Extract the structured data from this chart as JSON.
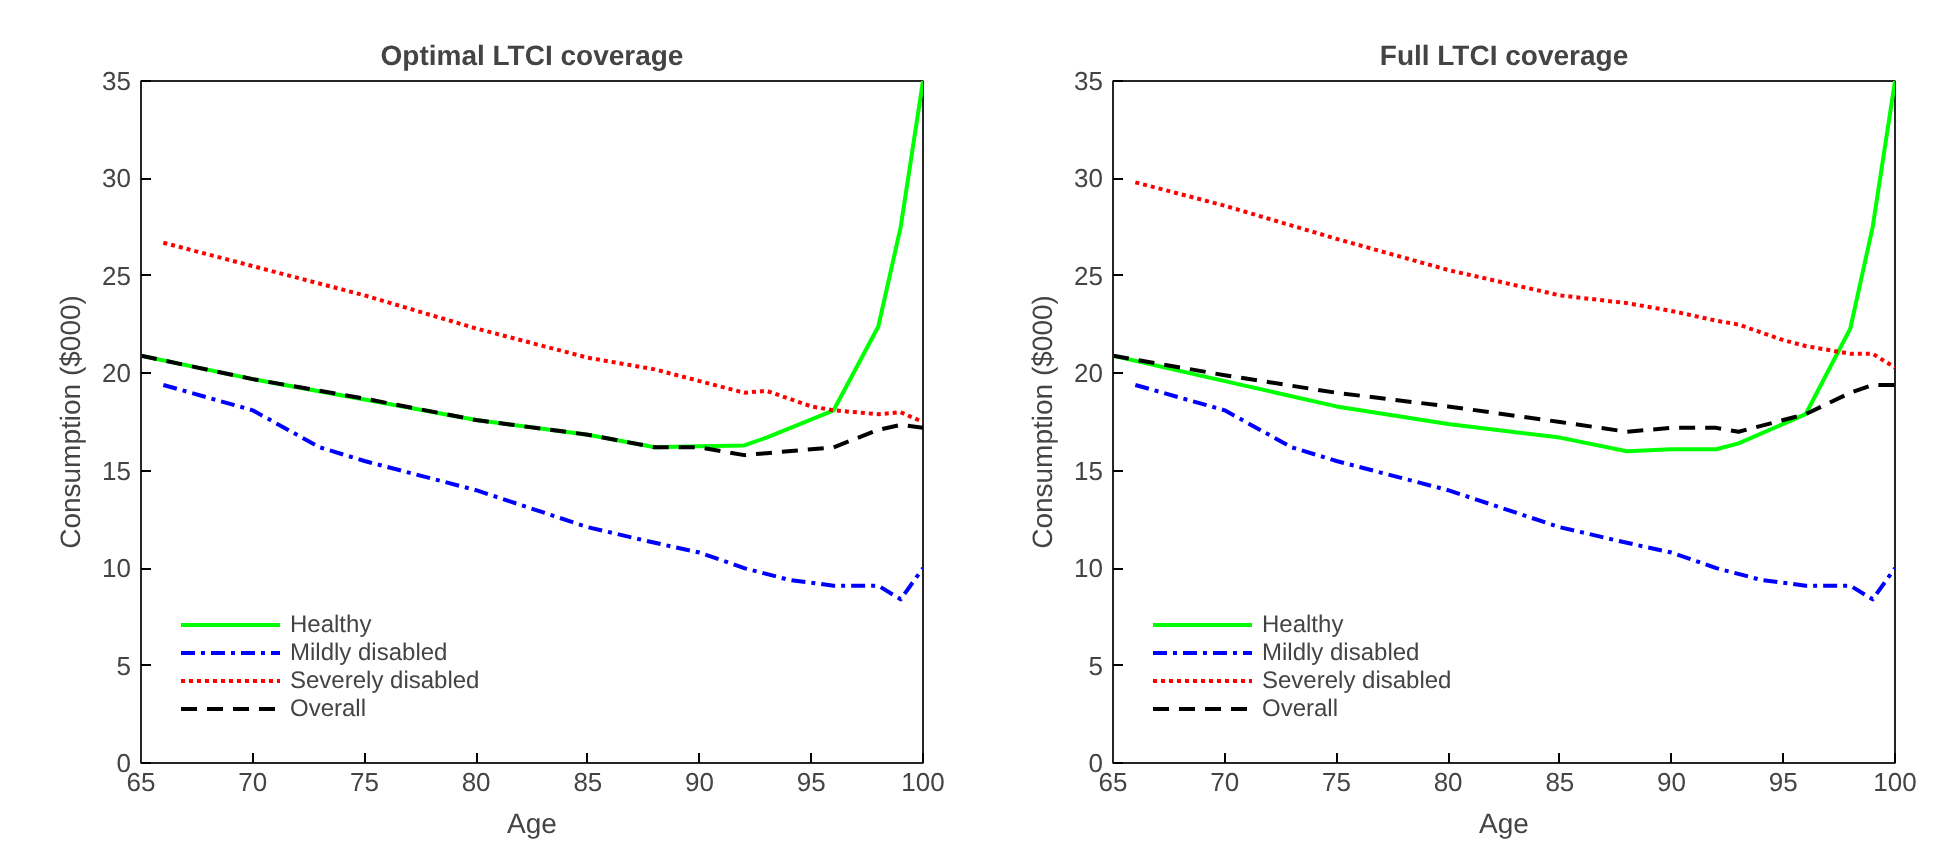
{
  "chart_data": [
    {
      "type": "line",
      "title": "Optimal LTCI coverage",
      "xlabel": "Age",
      "ylabel": "Consumption ($000)",
      "xlim": [
        65,
        100
      ],
      "ylim": [
        0,
        35
      ],
      "xticks": [
        65,
        70,
        75,
        80,
        85,
        90,
        95,
        100
      ],
      "yticks": [
        0,
        5,
        10,
        15,
        20,
        25,
        30,
        35
      ],
      "legend": "bottom left",
      "series": [
        {
          "name": "Healthy",
          "color": "#00ff00",
          "line_style": "solid",
          "x": [
            65,
            70,
            75,
            80,
            85,
            88,
            90,
            92,
            93,
            96,
            98,
            99,
            100
          ],
          "values": [
            20.9,
            19.7,
            18.65,
            17.6,
            16.85,
            16.2,
            16.25,
            16.3,
            16.7,
            18.1,
            22.4,
            27.5,
            35
          ]
        },
        {
          "name": "Mildly disabled",
          "color": "#0000ff",
          "line_style": "dashdot",
          "x": [
            66,
            70,
            73,
            75,
            80,
            85,
            88,
            90,
            92,
            94,
            96,
            98,
            99,
            100
          ],
          "values": [
            19.4,
            18.1,
            16.2,
            15.5,
            14.0,
            12.1,
            11.3,
            10.8,
            10.0,
            9.4,
            9.1,
            9.1,
            8.4,
            10.0
          ]
        },
        {
          "name": "Severely disabled",
          "color": "#ff0000",
          "line_style": "dotted",
          "x": [
            66,
            70,
            75,
            80,
            85,
            88,
            90,
            92,
            93,
            95,
            96,
            98,
            99,
            100
          ],
          "values": [
            26.7,
            25.5,
            24.0,
            22.3,
            20.8,
            20.2,
            19.6,
            19.0,
            19.1,
            18.3,
            18.1,
            17.9,
            18.0,
            17.5
          ]
        },
        {
          "name": "Overall",
          "color": "#000000",
          "line_style": "dashed",
          "x": [
            65,
            70,
            75,
            80,
            85,
            88,
            90,
            92,
            93,
            96,
            98,
            99,
            100
          ],
          "values": [
            20.9,
            19.7,
            18.7,
            17.6,
            16.85,
            16.2,
            16.2,
            15.8,
            15.9,
            16.2,
            17.1,
            17.35,
            17.2
          ]
        }
      ]
    },
    {
      "type": "line",
      "title": "Full LTCI coverage",
      "xlabel": "Age",
      "ylabel": "Consumption ($000)",
      "xlim": [
        65,
        100
      ],
      "ylim": [
        0,
        35
      ],
      "xticks": [
        65,
        70,
        75,
        80,
        85,
        90,
        95,
        100
      ],
      "yticks": [
        0,
        5,
        10,
        15,
        20,
        25,
        30,
        35
      ],
      "legend": "bottom left",
      "series": [
        {
          "name": "Healthy",
          "color": "#00ff00",
          "line_style": "solid",
          "x": [
            65,
            70,
            75,
            80,
            85,
            88,
            90,
            92,
            93,
            96,
            98,
            99,
            100
          ],
          "values": [
            20.9,
            19.6,
            18.3,
            17.4,
            16.7,
            16.0,
            16.1,
            16.1,
            16.4,
            17.9,
            22.3,
            27.5,
            35
          ]
        },
        {
          "name": "Mildly disabled",
          "color": "#0000ff",
          "line_style": "dashdot",
          "x": [
            66,
            70,
            73,
            75,
            80,
            85,
            88,
            90,
            92,
            94,
            96,
            98,
            99,
            100
          ],
          "values": [
            19.4,
            18.1,
            16.2,
            15.5,
            14.0,
            12.1,
            11.3,
            10.8,
            10.0,
            9.4,
            9.1,
            9.1,
            8.4,
            10.0
          ]
        },
        {
          "name": "Severely disabled",
          "color": "#ff0000",
          "line_style": "dotted",
          "x": [
            66,
            70,
            75,
            80,
            85,
            88,
            90,
            92,
            93,
            95,
            96,
            98,
            99,
            100
          ],
          "values": [
            29.8,
            28.6,
            26.9,
            25.3,
            24.0,
            23.6,
            23.2,
            22.7,
            22.5,
            21.7,
            21.4,
            21.0,
            21.0,
            20.3
          ]
        },
        {
          "name": "Overall",
          "color": "#000000",
          "line_style": "dashed",
          "x": [
            65,
            70,
            75,
            80,
            85,
            88,
            90,
            92,
            93,
            96,
            98,
            99,
            100
          ],
          "values": [
            20.9,
            19.9,
            19.0,
            18.3,
            17.5,
            17.0,
            17.2,
            17.2,
            17.0,
            17.9,
            19.0,
            19.4,
            19.4
          ]
        }
      ]
    }
  ]
}
